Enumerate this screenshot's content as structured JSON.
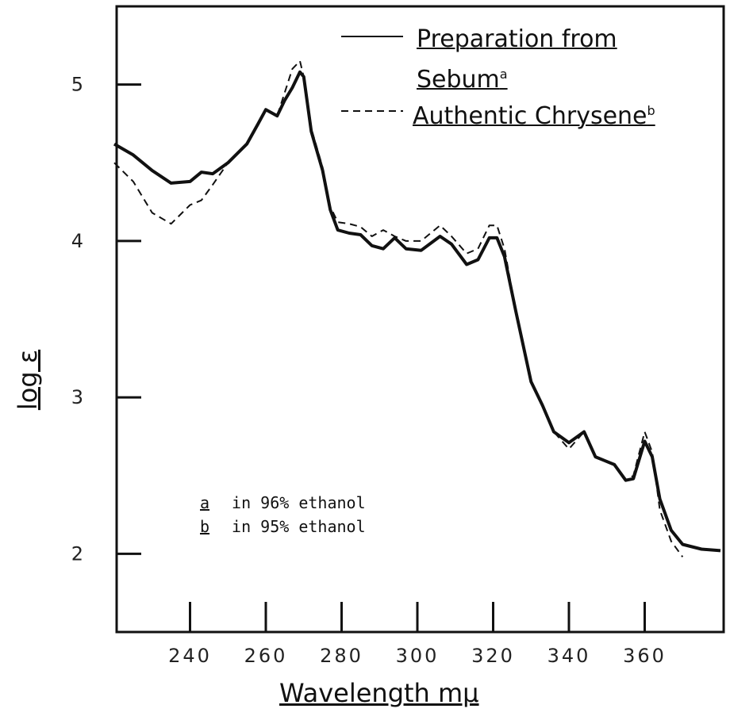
{
  "chart_data": {
    "type": "line",
    "x_label": "Wavelength mμ",
    "y_label": "log ε",
    "xlim": [
      220,
      380
    ],
    "ylim": [
      1.5,
      5.5
    ],
    "xticks": [
      240,
      260,
      280,
      300,
      320,
      340,
      360
    ],
    "yticks": [
      2,
      3,
      4,
      5
    ],
    "x": [
      220,
      225,
      230,
      235,
      240,
      243,
      246,
      250,
      255,
      258,
      260,
      263,
      265,
      267,
      269,
      270,
      272,
      275,
      277,
      279,
      282,
      285,
      288,
      291,
      294,
      297,
      301,
      306,
      309,
      313,
      316,
      319,
      321,
      323,
      326,
      330,
      333,
      336,
      340,
      344,
      347,
      352,
      355,
      357,
      360,
      362,
      364,
      367,
      370,
      375,
      380
    ],
    "series": [
      {
        "name": "Preparation from Sebum",
        "name_note": "a",
        "color": "#111111",
        "dash": false,
        "values": [
          4.62,
          4.55,
          4.45,
          4.37,
          4.38,
          4.44,
          4.43,
          4.5,
          4.62,
          4.75,
          4.84,
          4.8,
          4.9,
          4.98,
          5.08,
          5.05,
          4.7,
          4.45,
          4.2,
          4.07,
          4.05,
          4.04,
          3.97,
          3.95,
          4.02,
          3.95,
          3.94,
          4.03,
          3.98,
          3.85,
          3.88,
          4.02,
          4.02,
          3.9,
          3.55,
          3.1,
          2.95,
          2.78,
          2.71,
          2.78,
          2.62,
          2.57,
          2.47,
          2.48,
          2.72,
          2.62,
          2.35,
          2.15,
          2.06,
          2.03,
          2.02
        ]
      },
      {
        "name": "Authentic Chrysene",
        "name_note": "b",
        "color": "#111111",
        "dash": true,
        "values": [
          4.5,
          4.38,
          4.18,
          4.11,
          4.23,
          4.26,
          4.36,
          4.5,
          4.62,
          4.75,
          4.84,
          4.8,
          4.95,
          5.1,
          5.15,
          5.05,
          4.72,
          4.47,
          4.22,
          4.12,
          4.11,
          4.09,
          4.03,
          4.07,
          4.03,
          4.0,
          4.0,
          4.1,
          4.03,
          3.92,
          3.95,
          4.1,
          4.1,
          3.95,
          3.55,
          3.1,
          2.95,
          2.78,
          2.67,
          2.78,
          2.62,
          2.57,
          2.47,
          2.5,
          2.78,
          2.65,
          2.28,
          2.08,
          1.98,
          null,
          null
        ]
      }
    ],
    "annotations": [
      {
        "key": "a",
        "text": "in 96% ethanol"
      },
      {
        "key": "b",
        "text": "in 95% ethanol"
      }
    ]
  }
}
